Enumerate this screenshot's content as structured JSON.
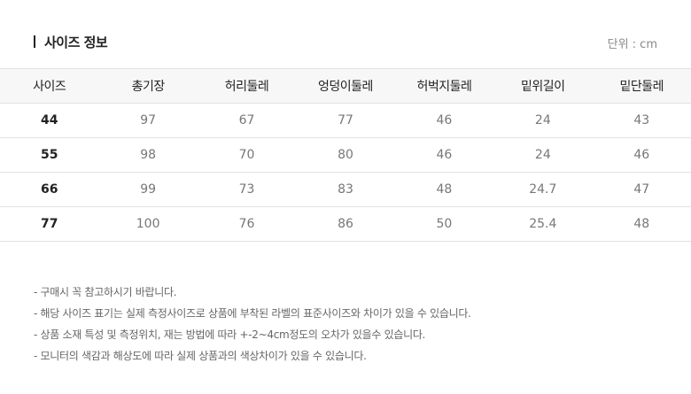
{
  "title": "사이즈 정보",
  "unit": "단위 : cm",
  "table": {
    "headers": [
      "사이즈",
      "총기장",
      "허리둘레",
      "엉덩이둘레",
      "허벅지둘레",
      "밑위길이",
      "밑단둘레"
    ],
    "rows": [
      [
        "44",
        "97",
        "67",
        "77",
        "46",
        "24",
        "43"
      ],
      [
        "55",
        "98",
        "70",
        "80",
        "46",
        "24",
        "46"
      ],
      [
        "66",
        "99",
        "73",
        "83",
        "48",
        "24.7",
        "47"
      ],
      [
        "77",
        "100",
        "76",
        "86",
        "50",
        "25.4",
        "48"
      ]
    ]
  },
  "notes": [
    "- 구매시 꼭 참고하시기 바랍니다.",
    "- 해당 사이즈 표기는 실제 측정사이즈로 상품에 부착된 라벨의 표준사이즈와 차이가 있을 수 있습니다.",
    "- 상품 소재 특성 및 측정위치, 재는 방법에 따라 +-2~4cm정도의 오차가 있을수 있습니다.",
    "- 모니터의 색감과 해상도에 따라 실제 상품과의 색상차이가 있을 수 있습니다."
  ]
}
